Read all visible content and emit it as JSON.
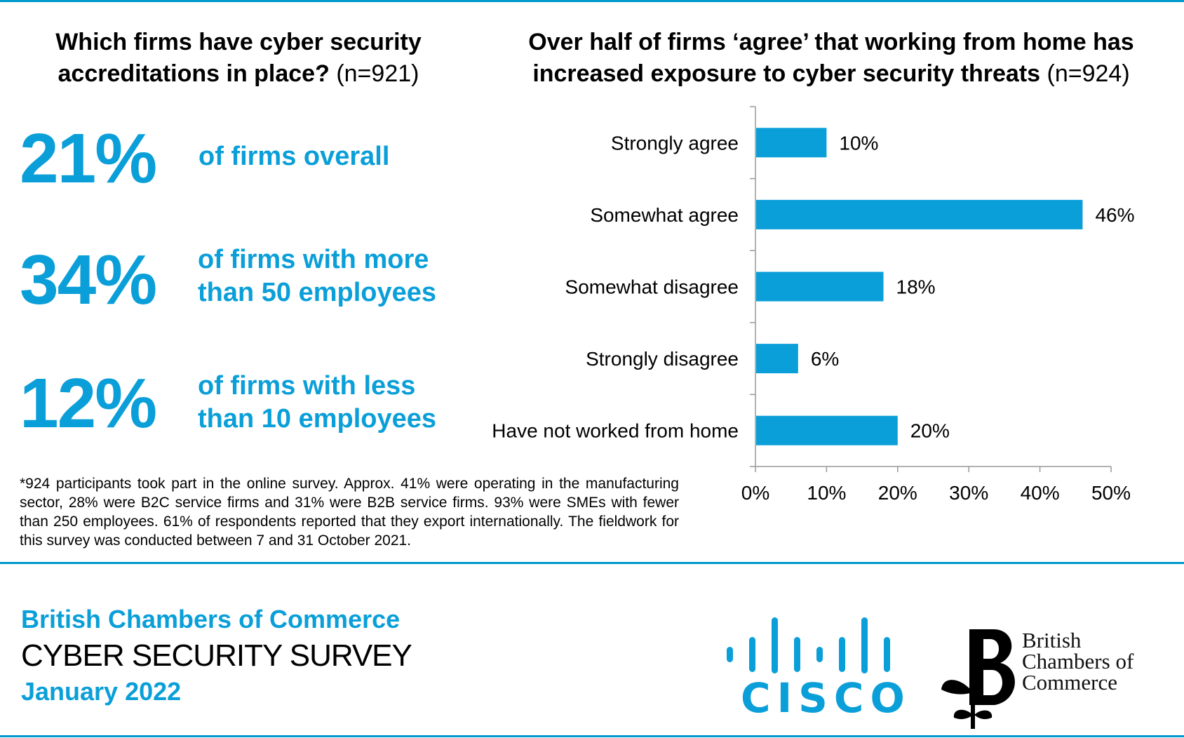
{
  "colors": {
    "accent": "#0a9fd8",
    "text": "#000000",
    "rule": "#0099cc"
  },
  "left_panel": {
    "title_bold": "Which firms have cyber security accreditations in place?",
    "title_n": "(n=921)",
    "stats": [
      {
        "value": "21%",
        "label_line1": "of firms overall",
        "label_line2": ""
      },
      {
        "value": "34%",
        "label_line1": "of firms with more",
        "label_line2": "than 50 employees"
      },
      {
        "value": "12%",
        "label_line1": "of firms with less",
        "label_line2": "than 10 employees"
      }
    ]
  },
  "right_panel": {
    "title_bold": "Over half of firms ‘agree’ that working from home has increased exposure to cyber security threats",
    "title_n": "(n=924)"
  },
  "chart_data": {
    "type": "bar",
    "orientation": "horizontal",
    "title": "Over half of firms ‘agree’ that working from home has increased exposure to cyber security threats (n=924)",
    "categories": [
      "Strongly agree",
      "Somewhat agree",
      "Somewhat disagree",
      "Strongly disagree",
      "Have not worked from home"
    ],
    "values": [
      10,
      46,
      18,
      6,
      20
    ],
    "data_labels": [
      "10%",
      "46%",
      "18%",
      "6%",
      "20%"
    ],
    "xlim": [
      0,
      50
    ],
    "x_ticks": [
      0,
      10,
      20,
      30,
      40,
      50
    ],
    "x_tick_labels": [
      "0%",
      "10%",
      "20%",
      "30%",
      "40%",
      "50%"
    ],
    "xlabel": "",
    "ylabel": "",
    "grid": false,
    "bar_color": "#0a9fd8"
  },
  "footnote": "*924 participants took part in the online survey. Approx. 41% were operating in the manufacturing sector, 28% were B2C service firms and 31% were B2B service firms. 93% were SMEs with fewer than 250 employees. 61% of respondents reported that they export internationally. The fieldwork for this survey was conducted between 7 and 31 October 2021.",
  "branding": {
    "org": "British Chambers of Commerce",
    "survey": "CYBER SECURITY SURVEY",
    "date": "January 2022",
    "cisco_logo": "CISCO",
    "bcc_logo_line1": "British",
    "bcc_logo_line2": "Chambers of",
    "bcc_logo_line3": "Commerce"
  }
}
